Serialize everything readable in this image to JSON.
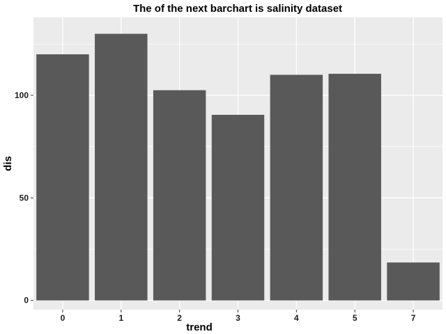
{
  "chart_data": {
    "type": "bar",
    "title": "The of the next barchart is salinity dataset",
    "xlabel": "trend",
    "ylabel": "dis",
    "categories": [
      "0",
      "1",
      "2",
      "3",
      "4",
      "5",
      "7"
    ],
    "values": [
      120,
      130,
      102.5,
      90.5,
      110,
      110.5,
      18.5
    ],
    "ylim": [
      -4.5,
      138
    ],
    "yticks": [
      0,
      50,
      100
    ],
    "grid": true,
    "legend": "none",
    "colors": {
      "panel_background": "#ebebeb",
      "grid_major": "#ffffff",
      "bar_fill": "#595959",
      "tick_mark": "#333333"
    }
  }
}
